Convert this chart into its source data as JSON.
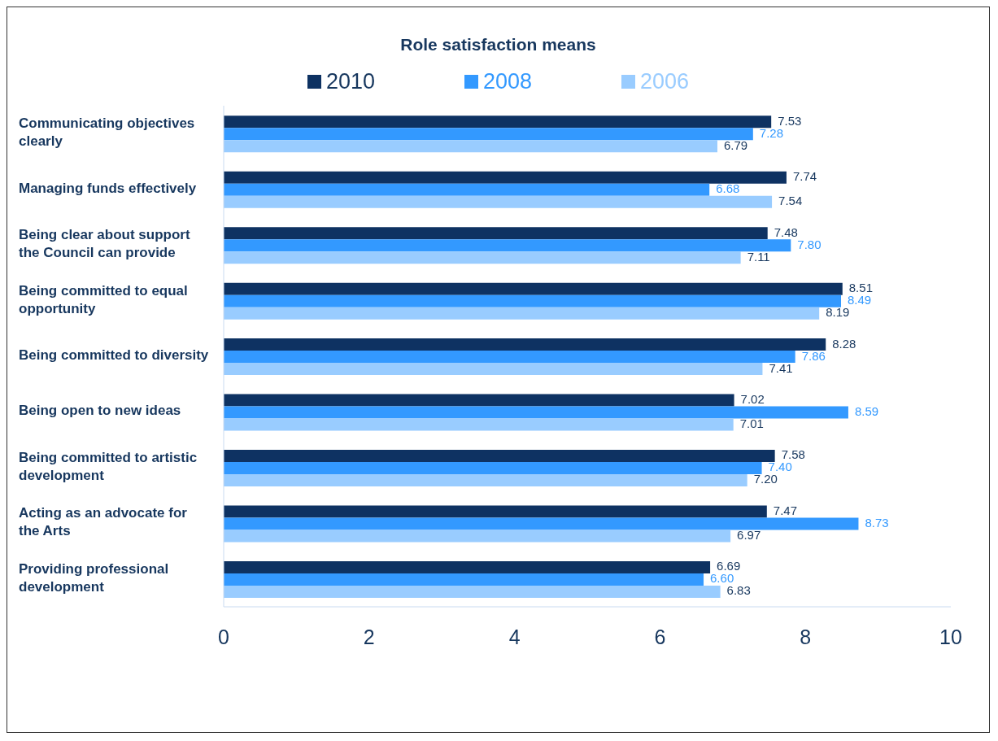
{
  "chart_data": {
    "type": "bar",
    "orientation": "horizontal",
    "title": "Role satisfaction means",
    "legend": "top",
    "categories": [
      "Communicating objectives clearly",
      "Managing funds effectively",
      "Being clear about support the Council can provide",
      "Being committed to equal opportunity",
      "Being committed to diversity",
      "Being open to new ideas",
      "Being committed to artistic development",
      "Acting as an advocate for the Arts",
      "Providing professional development"
    ],
    "series": [
      {
        "name": "2010",
        "color": "#0e3262",
        "values": [
          7.53,
          7.74,
          7.48,
          8.51,
          8.28,
          7.02,
          7.58,
          7.47,
          6.69
        ],
        "value_labels": [
          "7.53",
          "7.74",
          "7.48",
          "8.51",
          "8.28",
          "7.02",
          "7.58",
          "7.47",
          "6.69"
        ]
      },
      {
        "name": "2008",
        "color": "#3399ff",
        "values": [
          7.28,
          6.68,
          7.8,
          8.49,
          7.86,
          8.59,
          7.4,
          8.73,
          6.6
        ],
        "value_labels": [
          "7.28",
          "6.68",
          "7.80",
          "8.49",
          "7.86",
          "8.59",
          "7.40",
          "8.73",
          "6.60"
        ]
      },
      {
        "name": "2006",
        "color": "#99ccff",
        "values": [
          6.79,
          7.54,
          7.11,
          8.19,
          7.41,
          7.01,
          7.2,
          6.97,
          6.83
        ],
        "value_labels": [
          "6.79",
          "7.54",
          "7.11",
          "8.19",
          "7.41",
          "7.01",
          "7.20",
          "6.97",
          "6.83"
        ]
      }
    ],
    "xlim": [
      0,
      10
    ],
    "xticks": [
      0,
      2,
      4,
      6,
      8,
      10
    ],
    "grid": false
  }
}
